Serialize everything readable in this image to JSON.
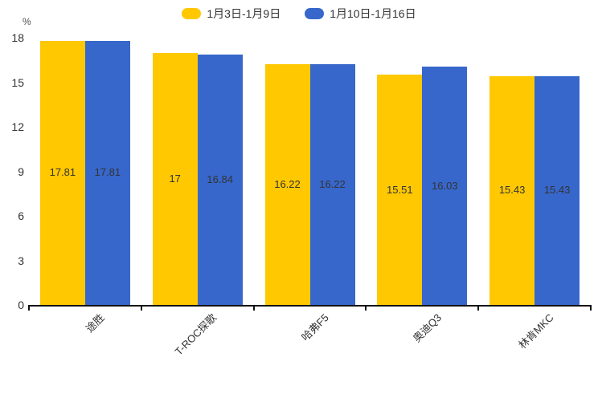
{
  "chart_data": {
    "type": "bar",
    "title": "",
    "unit_label": "%",
    "categories": [
      "途胜",
      "T-ROC探歌",
      "哈弗F5",
      "奥迪Q3",
      "林肯MKC"
    ],
    "series": [
      {
        "name": "1月3日-1月9日",
        "color": "#FFC800",
        "values": [
          17.81,
          17,
          16.22,
          15.51,
          15.43
        ]
      },
      {
        "name": "1月10日-1月16日",
        "color": "#3767CB",
        "values": [
          17.81,
          16.84,
          16.22,
          16.03,
          15.43
        ]
      }
    ],
    "ylim": [
      0,
      18
    ],
    "yticks": [
      0,
      3,
      6,
      9,
      12,
      15,
      18
    ],
    "grid": false,
    "legend_position": "top-center",
    "x_label_rotation_deg": 45,
    "value_labels_shown": true
  },
  "colors": {
    "axis": "#111111",
    "tick_text": "#333333",
    "value_label_text": "#333333",
    "background": "#ffffff"
  }
}
